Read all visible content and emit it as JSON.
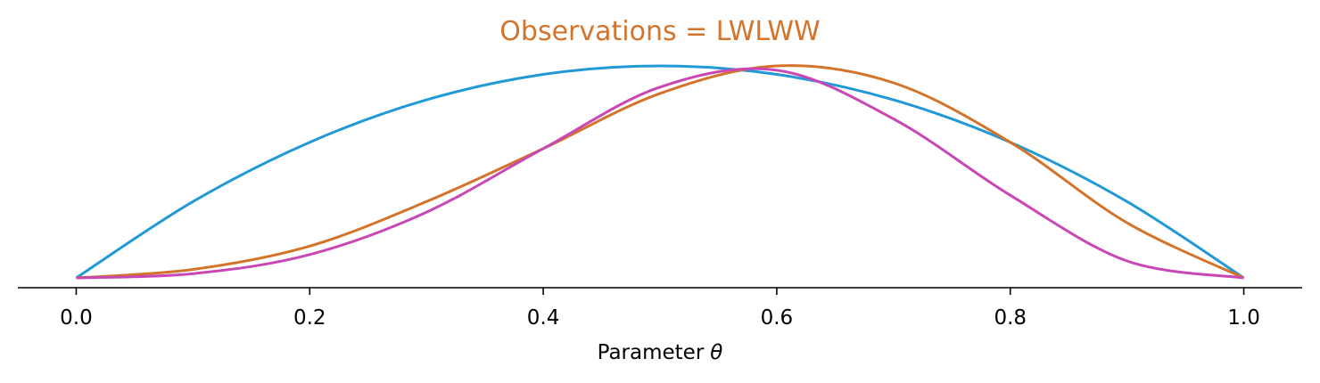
{
  "chart_data": {
    "type": "line",
    "title": "Observations = LWLWW",
    "xlabel": "Parameter",
    "xlabel_symbol": "θ",
    "ylabel": "",
    "xlim": [
      -0.05,
      1.05
    ],
    "xticks": [
      "0.0",
      "0.2",
      "0.4",
      "0.6",
      "0.8",
      "1.0"
    ],
    "grid": false,
    "y_axis_visible": false,
    "title_color": "#D3742A",
    "series": [
      {
        "color": "#2199D6",
        "x": [
          0.0,
          0.1,
          0.2,
          0.3,
          0.4,
          0.5,
          0.6,
          0.7,
          0.8,
          0.9,
          1.0
        ],
        "y": [
          0.0,
          0.36,
          0.64,
          0.84,
          0.96,
          1.0,
          0.96,
          0.84,
          0.64,
          0.36,
          0.0
        ]
      },
      {
        "color": "#D3742A",
        "x": [
          0.0,
          0.1,
          0.2,
          0.3,
          0.4,
          0.5,
          0.6,
          0.7,
          0.8,
          0.9,
          1.0
        ],
        "y": [
          0.0,
          0.04,
          0.15,
          0.36,
          0.61,
          0.87,
          1.0,
          0.92,
          0.64,
          0.26,
          0.0
        ]
      },
      {
        "color": "#C947B5",
        "x": [
          0.0,
          0.1,
          0.2,
          0.3,
          0.4,
          0.5,
          0.6,
          0.7,
          0.8,
          0.9,
          1.0
        ],
        "y": [
          0.0,
          0.02,
          0.11,
          0.31,
          0.61,
          0.9,
          0.98,
          0.75,
          0.39,
          0.08,
          0.0
        ]
      }
    ]
  }
}
